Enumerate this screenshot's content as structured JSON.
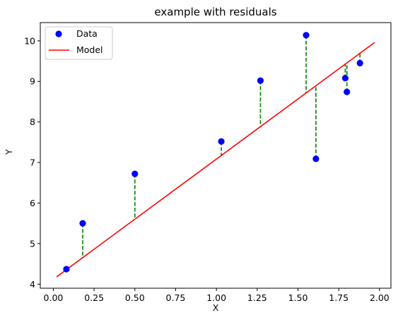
{
  "chart_data": {
    "type": "scatter",
    "title": "example with residuals",
    "xlabel": "X",
    "ylabel": "Y",
    "xlim": [
      -0.08,
      2.07
    ],
    "ylim": [
      3.9,
      10.45
    ],
    "xticks": [
      0.0,
      0.25,
      0.5,
      0.75,
      1.0,
      1.25,
      1.5,
      1.75,
      2.0
    ],
    "xtick_labels": [
      "0.00",
      "0.25",
      "0.50",
      "0.75",
      "1.00",
      "1.25",
      "1.50",
      "1.75",
      "2.00"
    ],
    "yticks": [
      4,
      5,
      6,
      7,
      8,
      9,
      10
    ],
    "ytick_labels": [
      "4",
      "5",
      "6",
      "7",
      "8",
      "9",
      "10"
    ],
    "grid": false,
    "legend": {
      "position": "upper-left",
      "entries": [
        {
          "label": "Data",
          "marker": "circle",
          "color": "#0000ff"
        },
        {
          "label": "Model",
          "marker": "line",
          "color": "#ff0000"
        }
      ]
    },
    "colors": {
      "data": "#0000ff",
      "model": "#ff0000",
      "residual": "#008000"
    },
    "series": [
      {
        "name": "Data",
        "kind": "scatter",
        "points": [
          {
            "x": 0.08,
            "y": 4.37
          },
          {
            "x": 0.18,
            "y": 5.5
          },
          {
            "x": 0.5,
            "y": 6.72
          },
          {
            "x": 1.03,
            "y": 7.52
          },
          {
            "x": 1.27,
            "y": 9.02
          },
          {
            "x": 1.55,
            "y": 10.14
          },
          {
            "x": 1.61,
            "y": 7.09
          },
          {
            "x": 1.79,
            "y": 9.08
          },
          {
            "x": 1.8,
            "y": 8.74
          },
          {
            "x": 1.88,
            "y": 9.45
          }
        ]
      },
      {
        "name": "Model",
        "kind": "line",
        "points": [
          {
            "x": 0.02,
            "y": 4.18
          },
          {
            "x": 1.97,
            "y": 9.96
          }
        ]
      }
    ]
  }
}
